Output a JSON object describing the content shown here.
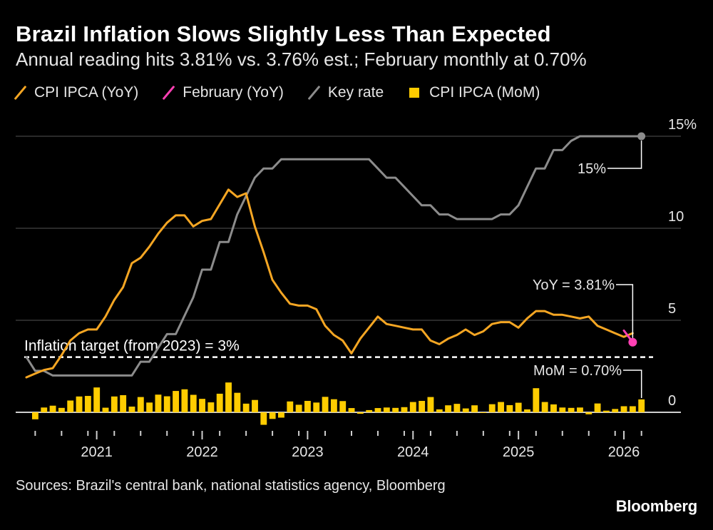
{
  "header": {
    "title": "Brazil Inflation Slows Slightly Less Than Expected",
    "subtitle": "Annual reading hits 3.81% vs. 3.76% est.; February monthly at 0.70%"
  },
  "legend": [
    {
      "label": "CPI IPCA (YoY)",
      "color": "#f5a623",
      "kind": "line"
    },
    {
      "label": "February (YoY)",
      "color": "#ff40b4",
      "kind": "line"
    },
    {
      "label": "Key rate",
      "color": "#8c8c8c",
      "kind": "line"
    },
    {
      "label": "CPI IPCA (MoM)",
      "color": "#ffcc00",
      "kind": "box"
    }
  ],
  "footer": {
    "source": "Sources: Brazil's central bank, national statistics agency, Bloomberg",
    "brand": "Bloomberg"
  },
  "chart_data": {
    "type": "line",
    "title": "Brazil Inflation Slows Slightly Less Than Expected",
    "ylim": [
      -0.7,
      15
    ],
    "x_range": [
      2020.333,
      2026.25
    ],
    "x_tick_labels": [
      "2021",
      "2022",
      "2023",
      "2024",
      "2025",
      "2026"
    ],
    "x_tick_values": [
      2021,
      2022,
      2023,
      2024,
      2025,
      2026
    ],
    "y_tick_labels": [
      "15%",
      "10",
      "5",
      "0"
    ],
    "y_tick_values": [
      15,
      10,
      5,
      0
    ],
    "reference_line": {
      "label": "Inflation target (from 2023) = 3%",
      "value": 3
    },
    "annotations": {
      "key_rate": "15%",
      "yoy": "YoY = 3.81%",
      "mom": "MoM = 0.70%"
    },
    "series": [
      {
        "name": "CPI IPCA (YoY)",
        "start": 2020.333,
        "step": 0.08333,
        "values": [
          1.9,
          2.1,
          2.3,
          2.4,
          3.1,
          3.9,
          4.3,
          4.5,
          4.5,
          5.2,
          6.1,
          6.8,
          8.1,
          8.4,
          9.0,
          9.7,
          10.3,
          10.7,
          10.7,
          10.1,
          10.4,
          10.5,
          11.3,
          12.1,
          11.7,
          11.9,
          10.1,
          8.7,
          7.2,
          6.5,
          5.9,
          5.8,
          5.8,
          5.6,
          4.7,
          4.2,
          3.9,
          3.2,
          4.0,
          4.6,
          5.2,
          4.8,
          4.7,
          4.6,
          4.5,
          4.5,
          3.9,
          3.7,
          4.0,
          4.2,
          4.5,
          4.2,
          4.4,
          4.8,
          4.9,
          4.9,
          4.6,
          5.1,
          5.5,
          5.5,
          5.3,
          5.3,
          5.2,
          5.1,
          5.2,
          4.7,
          4.5,
          4.3,
          4.1,
          4.3
        ]
      },
      {
        "name": "February (YoY)",
        "start": 2026.0,
        "step": 0.08333,
        "values": [
          4.44,
          3.81
        ]
      },
      {
        "name": "Key rate",
        "start": 2020.333,
        "step": 0.08333,
        "values": [
          3.0,
          2.25,
          2.25,
          2.0,
          2.0,
          2.0,
          2.0,
          2.0,
          2.0,
          2.0,
          2.0,
          2.0,
          2.0,
          2.75,
          2.75,
          3.5,
          4.25,
          4.25,
          5.25,
          6.25,
          7.75,
          7.75,
          9.25,
          9.25,
          10.75,
          11.75,
          12.75,
          13.25,
          13.25,
          13.75,
          13.75,
          13.75,
          13.75,
          13.75,
          13.75,
          13.75,
          13.75,
          13.75,
          13.75,
          13.75,
          13.25,
          12.75,
          12.75,
          12.25,
          11.75,
          11.25,
          11.25,
          10.75,
          10.75,
          10.5,
          10.5,
          10.5,
          10.5,
          10.5,
          10.75,
          10.75,
          11.25,
          12.25,
          13.25,
          13.25,
          14.25,
          14.25,
          14.75,
          15.0,
          15.0,
          15.0,
          15.0,
          15.0,
          15.0,
          15.0,
          15.0
        ]
      },
      {
        "name": "CPI IPCA (MoM)",
        "type": "bar",
        "start": 2020.417,
        "step": 0.08333,
        "values": [
          -0.38,
          0.26,
          0.36,
          0.24,
          0.64,
          0.86,
          0.89,
          1.35,
          0.25,
          0.86,
          0.93,
          0.31,
          0.83,
          0.53,
          0.96,
          0.87,
          1.16,
          1.25,
          0.95,
          0.73,
          0.54,
          1.01,
          1.62,
          1.06,
          0.47,
          0.67,
          -0.68,
          -0.36,
          -0.29,
          0.59,
          0.41,
          0.62,
          0.53,
          0.84,
          0.71,
          0.61,
          0.23,
          -0.08,
          0.12,
          0.23,
          0.26,
          0.24,
          0.28,
          0.56,
          0.62,
          0.83,
          0.16,
          0.38,
          0.46,
          0.21,
          0.38,
          -0.02,
          0.44,
          0.56,
          0.39,
          0.52,
          0.16,
          1.31,
          0.56,
          0.43,
          0.26,
          0.24,
          0.26,
          -0.11,
          0.48,
          0.09,
          0.18,
          0.33,
          0.33,
          0.7
        ]
      }
    ]
  }
}
